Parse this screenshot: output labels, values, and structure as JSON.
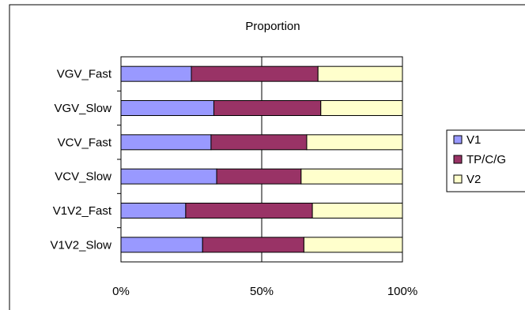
{
  "chart_data": {
    "type": "bar",
    "orientation": "horizontal",
    "stacked": "percent",
    "title": "Proportion",
    "categories": [
      "VGV_Fast",
      "VGV_Slow",
      "VCV_Fast",
      "VCV_Slow",
      "V1V2_Fast",
      "V1V2_Slow"
    ],
    "series": [
      {
        "name": "V1",
        "color": "#9999ff",
        "values": [
          25,
          33,
          32,
          34,
          23,
          29
        ]
      },
      {
        "name": "TP/C/G",
        "color": "#993366",
        "values": [
          45,
          38,
          34,
          30,
          45,
          36
        ]
      },
      {
        "name": "V2",
        "color": "#ffffcc",
        "values": [
          30,
          29,
          34,
          36,
          32,
          35
        ]
      }
    ],
    "xticks": [
      "0%",
      "50%",
      "100%"
    ],
    "xlim": [
      0,
      100
    ],
    "grid": "vertical at 50%",
    "legend": "right"
  }
}
